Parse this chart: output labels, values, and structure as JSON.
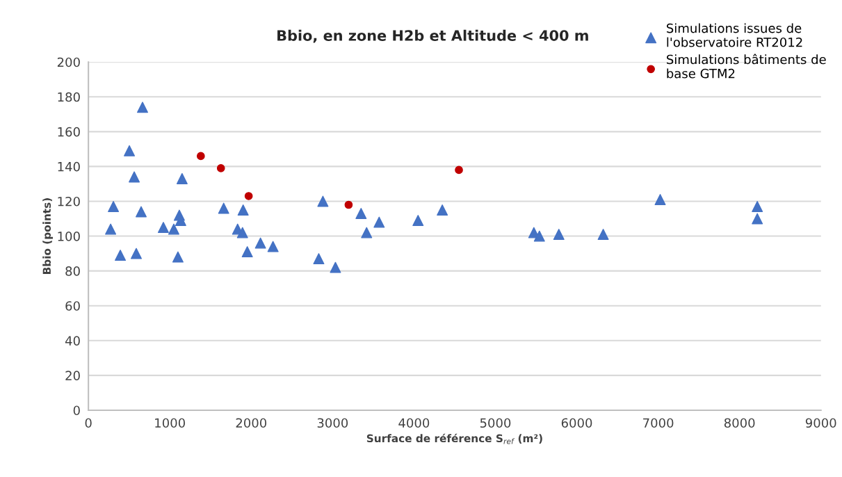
{
  "chart_data": {
    "type": "scatter",
    "title": "Bbio, en zone H2b et Altitude < 400 m",
    "xlabel": "Surface de référence S$_{ref}$ (m²)",
    "ylabel": "Bbio (points)",
    "xlim": [
      0,
      9000
    ],
    "xticks": [
      0,
      1000,
      2000,
      3000,
      4000,
      5000,
      6000,
      7000,
      8000,
      9000
    ],
    "ylim": [
      0,
      200
    ],
    "yticks": [
      0,
      20,
      40,
      60,
      80,
      100,
      120,
      140,
      160,
      180,
      200
    ],
    "grid": "y",
    "legend": "top right",
    "series": [
      {
        "name": "Simulations issues de l'observatoire RT2012",
        "color": "#4472c4",
        "marker": "triangle",
        "x": [
          665,
          503,
          563,
          1151,
          307,
          648,
          273,
          392,
          588,
          1100,
          921,
          1049,
          1117,
          1134,
          1662,
          1901,
          1833,
          1893,
          1952,
          2114,
          2268,
          2881,
          2830,
          3035,
          3350,
          3418,
          3572,
          4050,
          4348,
          5473,
          5541,
          5780,
          6325,
          7025,
          8218,
          8218
        ],
        "values": [
          174,
          149,
          134,
          133,
          117,
          114,
          104,
          89,
          90,
          88,
          105,
          104,
          112,
          109,
          116,
          115,
          104,
          102,
          91,
          96,
          94,
          120,
          87,
          82,
          113,
          102,
          108,
          109,
          115,
          102,
          100,
          101,
          101,
          121,
          117,
          110
        ]
      },
      {
        "name": "Simulations bâtiments de base GTM2",
        "color": "#c00000",
        "marker": "circle",
        "x": [
          1381,
          1628,
          1969,
          3197,
          4552
        ],
        "values": [
          146,
          139,
          123,
          118,
          138
        ]
      }
    ]
  }
}
